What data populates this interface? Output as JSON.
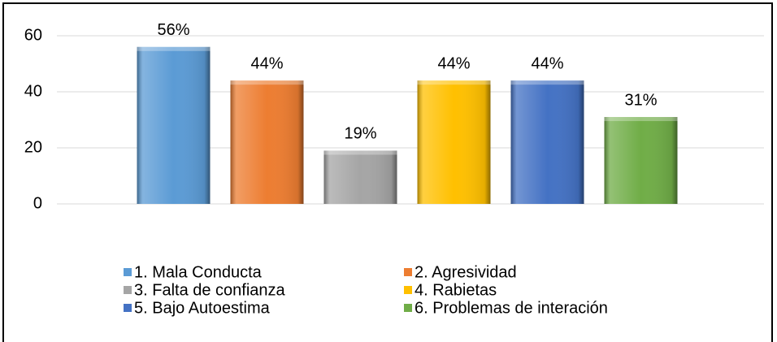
{
  "chart_data": {
    "type": "bar",
    "categories": [
      null
    ],
    "series": [
      {
        "name": "1. Mala Conducta",
        "color": "#5b9bd5",
        "values": [
          56
        ],
        "value_labels": [
          "56%"
        ]
      },
      {
        "name": "2. Agresividad",
        "color": "#ed7d31",
        "values": [
          44
        ],
        "value_labels": [
          "44%"
        ]
      },
      {
        "name": "3. Falta de confianza",
        "color": "#a5a5a5",
        "values": [
          19
        ],
        "value_labels": [
          "19%"
        ]
      },
      {
        "name": "4. Rabietas",
        "color": "#ffc000",
        "values": [
          44
        ],
        "value_labels": [
          "44%"
        ]
      },
      {
        "name": "5. Bajo Autoestima",
        "color": "#4472c4",
        "values": [
          44
        ],
        "value_labels": [
          "44%"
        ]
      },
      {
        "name": "6. Problemas de interación",
        "color": "#70ad47",
        "values": [
          31
        ],
        "value_labels": [
          "31%"
        ]
      }
    ],
    "ylim": [
      0,
      60
    ],
    "yticks": [
      0,
      20,
      40,
      60
    ],
    "grid": true,
    "legend": "bottom"
  }
}
